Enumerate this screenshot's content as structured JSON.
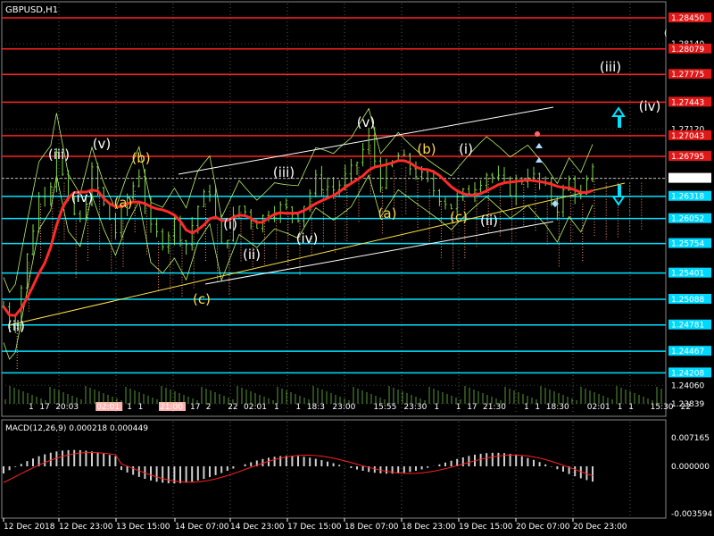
{
  "window": {
    "title": "GBPUSD,H1"
  },
  "colors": {
    "background": "#000000",
    "resistance": "#ff2020",
    "support": "#00e0ff",
    "price": "#7fd94a",
    "ma": "#ff2a2a",
    "cloud": "#ff9a7a",
    "bands": "#b6f06a",
    "channel": "#ffffff",
    "trend": "#ffe14a",
    "wave_white": "#ffffff",
    "wave_yellow": "#ffd84a",
    "macd_hist": "#cfcfcf",
    "macd_signal": "#ff2020"
  },
  "price_axis": {
    "labels": [
      "1.28450",
      "1.28140",
      "1.28079",
      "1.27775",
      "1.27443",
      "1.27120",
      "1.27043",
      "1.26795",
      "1.26533",
      "1.26318",
      "1.26052",
      "1.25754",
      "1.25401",
      "1.25088",
      "1.24781",
      "1.24467",
      "1.24208",
      "1.24060",
      "1.23839"
    ]
  },
  "resistance_levels": [
    "1.28450",
    "1.28079",
    "1.27775",
    "1.27443",
    "1.27043",
    "1.26795"
  ],
  "support_levels": [
    "1.26318",
    "1.26052",
    "1.25754",
    "1.25401",
    "1.25088",
    "1.24781",
    "1.24467",
    "1.24208"
  ],
  "current_price": "1.26533",
  "extra_mark": "(",
  "wave_labels": {
    "white": [
      "(iii)",
      "(v)",
      "(iv)",
      "(ii)",
      "(i)",
      "(ii)",
      "(iii)",
      "(iv)",
      "(v)",
      "(i)",
      "(ii)",
      "(iii)",
      "(iv)"
    ],
    "yellow": [
      "(b)",
      "(a)",
      "(c)",
      "(a)",
      "(b)",
      "(c)"
    ]
  },
  "session_markers": [
    "1",
    "17",
    "20:03",
    "02:01",
    "1",
    "1",
    "21:00",
    "17",
    "2",
    "22",
    "02:01",
    "1",
    "1",
    "18:3",
    "23:00",
    "15:55",
    "23:30",
    "1",
    "1",
    "17",
    "21:30",
    "1",
    "1",
    "18:30",
    "02:01",
    "1",
    "1",
    "15:30",
    "22"
  ],
  "session_current_labels": [
    "02:01",
    "21:00",
    "02:01"
  ],
  "macd": {
    "title": "MACD(12,26,9) 0.000218 0.000449",
    "axis": [
      "0.007165",
      "0.000000",
      "-0.003594"
    ]
  },
  "time_axis": [
    "12 Dec 2018",
    "12 Dec 23:00",
    "13 Dec 15:00",
    "14 Dec 07:00",
    "14 Dec 23:00",
    "17 Dec 15:00",
    "18 Dec 07:00",
    "18 Dec 23:00",
    "19 Dec 15:00",
    "20 Dec 07:00",
    "20 Dec 23:00"
  ],
  "chart_data": {
    "type": "line",
    "title": "GBPUSD,H1",
    "xlabel": "",
    "ylabel": "",
    "x": [
      "12 Dec 2018",
      "12 Dec 23:00",
      "13 Dec 15:00",
      "14 Dec 07:00",
      "14 Dec 23:00",
      "17 Dec 15:00",
      "18 Dec 07:00",
      "18 Dec 23:00",
      "19 Dec 15:00",
      "20 Dec 07:00",
      "20 Dec 23:00"
    ],
    "ylim": [
      1.2375,
      1.286
    ],
    "grid": true,
    "series": [
      {
        "price": [
          1.2465,
          1.264,
          1.2672,
          1.255,
          1.2605,
          1.2612,
          1.2655,
          1.268,
          1.264,
          1.27,
          1.2666
        ]
      },
      {
        "ma": [
          1.247,
          1.2632,
          1.264,
          1.26,
          1.259,
          1.2612,
          1.2635,
          1.265,
          1.2645,
          1.2672,
          1.2668
        ]
      }
    ]
  }
}
